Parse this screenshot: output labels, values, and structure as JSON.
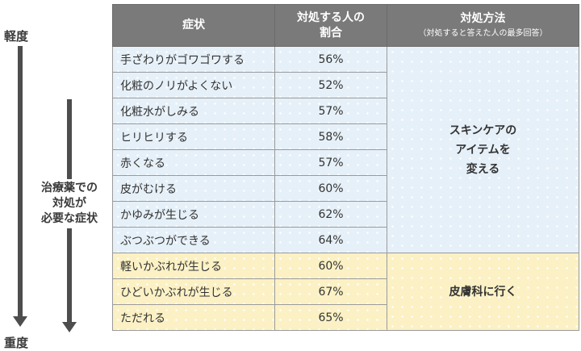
{
  "side": {
    "top_label": "軽度",
    "bottom_label": "重度",
    "middle_label": "治療薬での\n対処が\n必要な症状"
  },
  "table": {
    "headers": {
      "symptom": "症状",
      "percent": "対処する人の\n割合",
      "method": "対処方法",
      "method_sub": "（対処すると答えた人の最多回答）"
    },
    "rows": [
      {
        "symptom": "手ざわりがゴワゴワする",
        "percent": "56%"
      },
      {
        "symptom": "化粧のノリがよくない",
        "percent": "52%"
      },
      {
        "symptom": "化粧水がしみる",
        "percent": "57%"
      },
      {
        "symptom": "ヒリヒリする",
        "percent": "58%"
      },
      {
        "symptom": "赤くなる",
        "percent": "57%"
      },
      {
        "symptom": "皮がむける",
        "percent": "60%"
      },
      {
        "symptom": "かゆみが生じる",
        "percent": "62%"
      },
      {
        "symptom": "ぶつぶつができる",
        "percent": "64%"
      },
      {
        "symptom": "軽いかぶれが生じる",
        "percent": "60%"
      },
      {
        "symptom": "ひどいかぶれが生じる",
        "percent": "67%"
      },
      {
        "symptom": "ただれる",
        "percent": "65%"
      }
    ],
    "methods": [
      {
        "label": "スキンケアの\nアイテムを\n変える"
      },
      {
        "label": "皮膚科に行く"
      }
    ]
  },
  "colors": {
    "header": "#7a7a7a",
    "skincare_group": "#e6f0f8",
    "clinic_group": "#fbf1c4",
    "arrow": "#4d4d4d"
  }
}
